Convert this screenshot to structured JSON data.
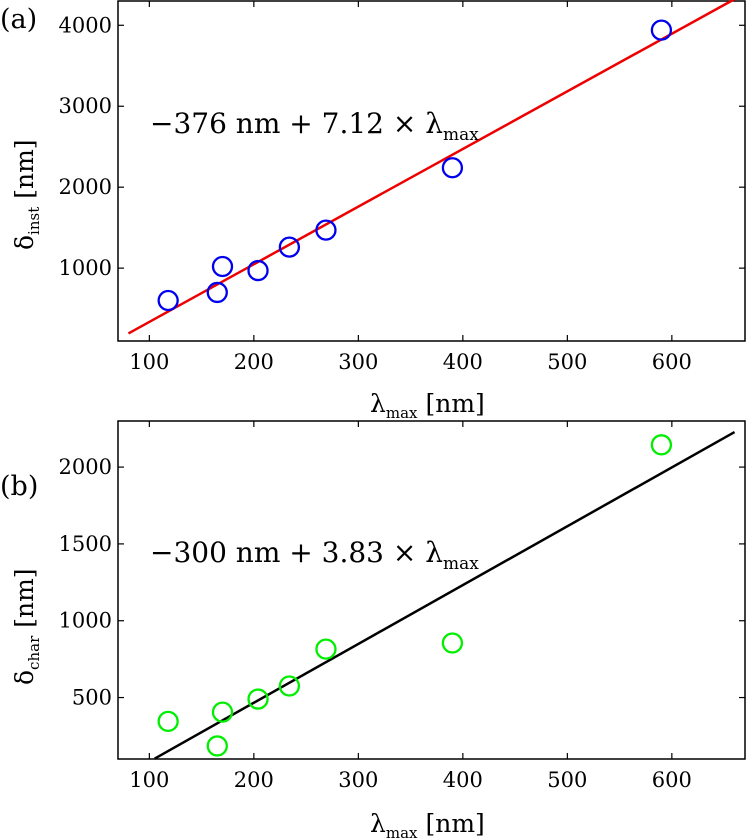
{
  "chart_data": [
    {
      "type": "scatter",
      "panel_label": "(a)",
      "xlabel": "λ",
      "xlabel_sub": "max",
      "xlabel_unit": "[nm]",
      "ylabel": "δ",
      "ylabel_sub": "inst",
      "ylabel_unit": "[nm]",
      "xlim": [
        70,
        670
      ],
      "ylim": [
        100,
        4300
      ],
      "xticks": [
        100,
        200,
        300,
        400,
        500,
        600
      ],
      "yticks": [
        1000,
        2000,
        3000,
        4000
      ],
      "xtick_labels": [
        "100",
        "200",
        "300",
        "400",
        "500",
        "600"
      ],
      "ytick_labels": [
        "1000",
        "2000",
        "3000",
        "4000"
      ],
      "grid": false,
      "series": [
        {
          "kind": "scatter",
          "marker": "open-circle",
          "color": "#0000ee",
          "x": [
            118,
            165,
            170,
            204,
            234,
            269,
            390,
            590
          ],
          "y": [
            600,
            700,
            1020,
            970,
            1260,
            1470,
            2240,
            3940
          ]
        },
        {
          "kind": "line",
          "color": "#ee0000",
          "intercept": -376,
          "slope": 7.12,
          "x_range": [
            80,
            660
          ]
        }
      ],
      "annotation": {
        "prefix": "−376 nm + 7.12 × λ",
        "sub": "max"
      }
    },
    {
      "type": "scatter",
      "panel_label": "(b)",
      "xlabel": "λ",
      "xlabel_sub": "max",
      "xlabel_unit": "[nm]",
      "ylabel": "δ",
      "ylabel_sub": "char",
      "ylabel_unit": "[nm]",
      "xlim": [
        70,
        670
      ],
      "ylim": [
        100,
        2300
      ],
      "xticks": [
        100,
        200,
        300,
        400,
        500,
        600
      ],
      "yticks": [
        500,
        1000,
        1500,
        2000
      ],
      "xtick_labels": [
        "100",
        "200",
        "300",
        "400",
        "500",
        "600"
      ],
      "ytick_labels": [
        "500",
        "1000",
        "1500",
        "2000"
      ],
      "grid": false,
      "series": [
        {
          "kind": "scatter",
          "marker": "open-circle",
          "color": "#00ee00",
          "x": [
            118,
            165,
            170,
            204,
            234,
            269,
            390,
            590
          ],
          "y": [
            345,
            185,
            405,
            490,
            575,
            815,
            855,
            2145
          ]
        },
        {
          "kind": "line",
          "color": "#000000",
          "intercept": -300,
          "slope": 3.83,
          "x_range": [
            105,
            660
          ]
        }
      ],
      "annotation": {
        "prefix": "−300 nm + 3.83 × λ",
        "sub": "max"
      }
    }
  ]
}
